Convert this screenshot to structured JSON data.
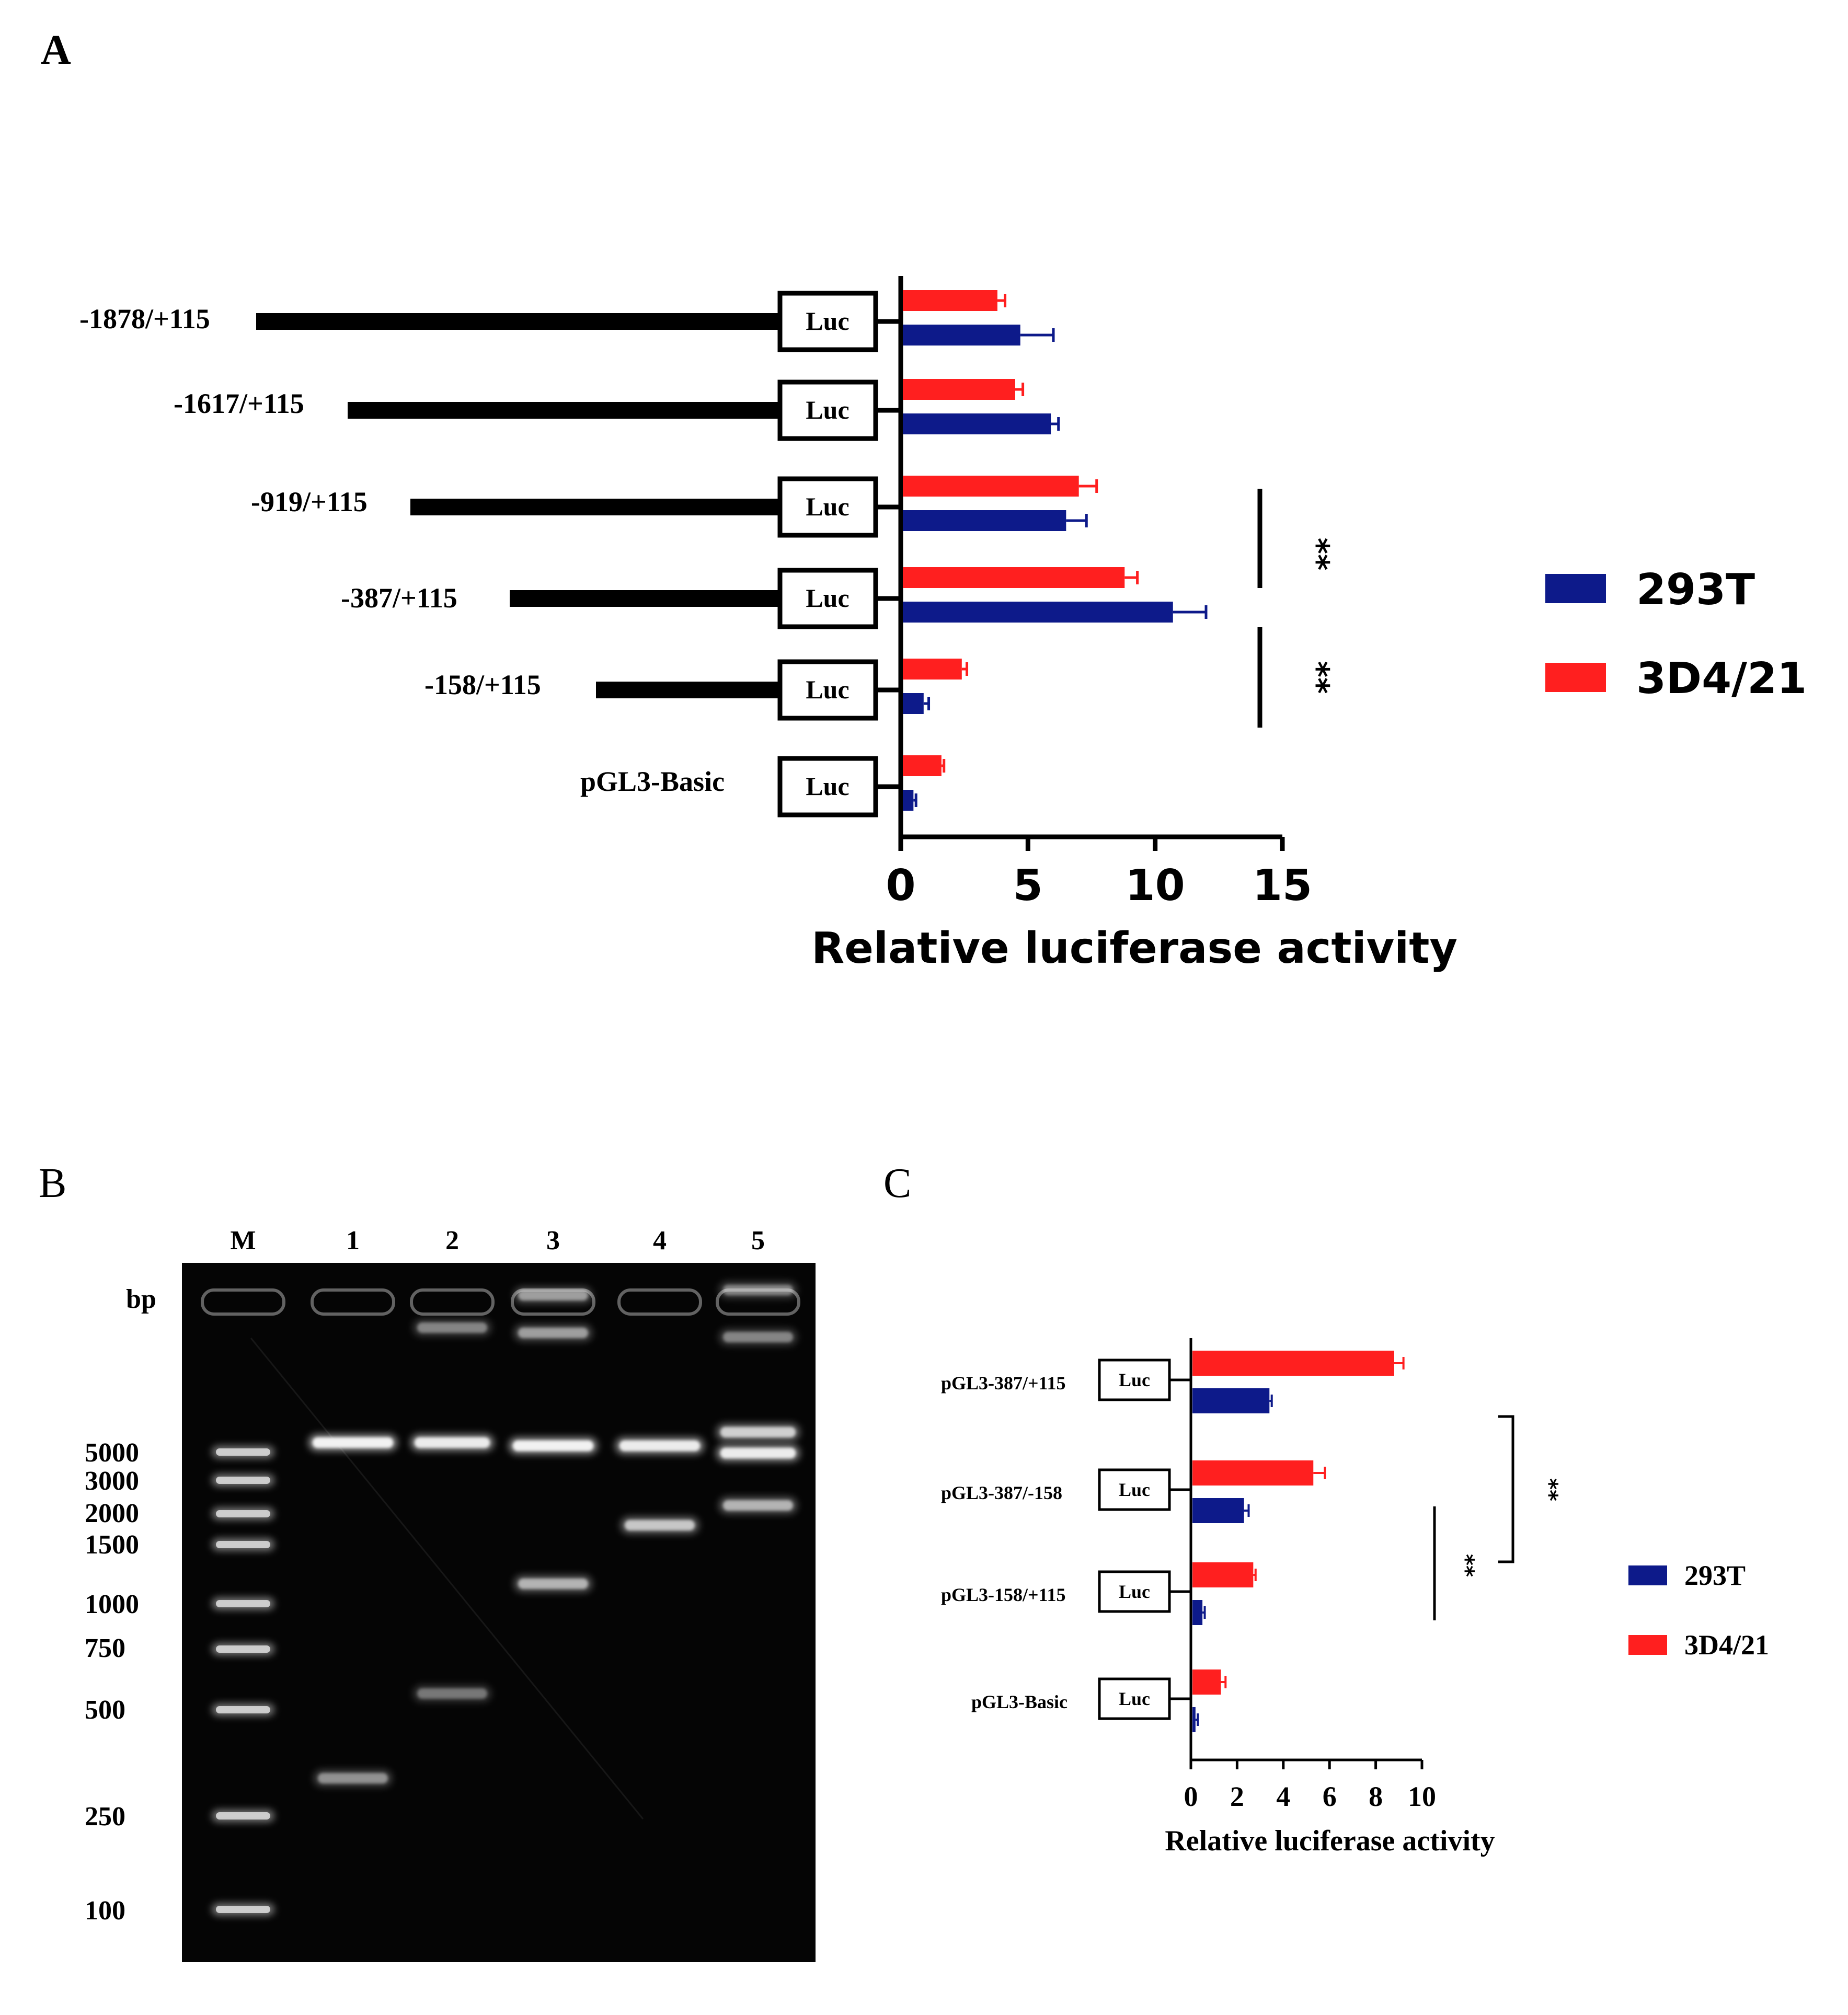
{
  "panels": {
    "A": {
      "letter": "A"
    },
    "B": {
      "letter": "B"
    },
    "C": {
      "letter": "C"
    }
  },
  "colors": {
    "s293T": "#0d1a8a",
    "s3D4_21": "#ff1f1f",
    "gel_bg": "#050505",
    "band": "#f2f2f2"
  },
  "chart_data": [
    {
      "panel": "A",
      "type": "bar",
      "orientation": "horizontal",
      "categories": [
        "-1878/+115",
        "-1617/+115",
        "-919/+115",
        "-387/+115",
        "-158/+115",
        "pGL3-Basic"
      ],
      "construct_box_label": "Luc",
      "series": [
        {
          "name": "3D4/21",
          "color": "#ff1f1f",
          "values": [
            3.8,
            4.5,
            7.0,
            8.8,
            2.4,
            1.6
          ],
          "errors": [
            0.3,
            0.3,
            0.7,
            0.5,
            0.2,
            0.1
          ]
        },
        {
          "name": "293T",
          "color": "#0d1a8a",
          "values": [
            4.7,
            5.9,
            6.5,
            10.7,
            0.9,
            0.5
          ],
          "errors": [
            1.3,
            0.3,
            0.8,
            1.3,
            0.2,
            0.1
          ]
        }
      ],
      "legend": [
        "293T",
        "3D4/21"
      ],
      "legend_position": "right",
      "xlabel": "Relative luciferase activity",
      "xlim": [
        0,
        15
      ],
      "xticks": [
        "0",
        "5",
        "10",
        "15"
      ],
      "significance": [
        {
          "label": "**",
          "from": "-919/+115",
          "to": "-387/+115"
        },
        {
          "label": "**",
          "from": "-387/+115",
          "to": "-158/+115"
        }
      ]
    },
    {
      "panel": "B",
      "type": "gel",
      "lane_labels": [
        "M",
        "1",
        "2",
        "3",
        "4",
        "5"
      ],
      "unit_label": "bp",
      "marker_labels": [
        "5000",
        "3000",
        "2000",
        "1500",
        "1000",
        "750",
        "500",
        "250",
        "100"
      ]
    },
    {
      "panel": "C",
      "type": "bar",
      "orientation": "horizontal",
      "categories": [
        "pGL3-387/+115",
        "pGL3-387/-158",
        "pGL3-158/+115",
        "pGL3-Basic"
      ],
      "construct_box_label": "Luc",
      "series": [
        {
          "name": "3D4/21",
          "color": "#ff1f1f",
          "values": [
            8.8,
            5.3,
            2.7,
            1.3
          ],
          "errors": [
            0.4,
            0.5,
            0.1,
            0.2
          ]
        },
        {
          "name": "293T",
          "color": "#0d1a8a",
          "values": [
            3.4,
            2.3,
            0.5,
            0.2
          ],
          "errors": [
            0.1,
            0.2,
            0.1,
            0.1
          ]
        }
      ],
      "legend": [
        "293T",
        "3D4/21"
      ],
      "legend_position": "right",
      "xlabel": "Relative luciferase activity",
      "xlim": [
        0,
        10
      ],
      "xticks": [
        "0",
        "2",
        "4",
        "6",
        "8",
        "10"
      ],
      "significance": [
        {
          "label": "**",
          "from": "pGL3-387/-158",
          "to": "pGL3-158/+115"
        },
        {
          "label": "**",
          "from": "pGL3-387/+115",
          "to": "pGL3-158/+115"
        }
      ]
    }
  ]
}
